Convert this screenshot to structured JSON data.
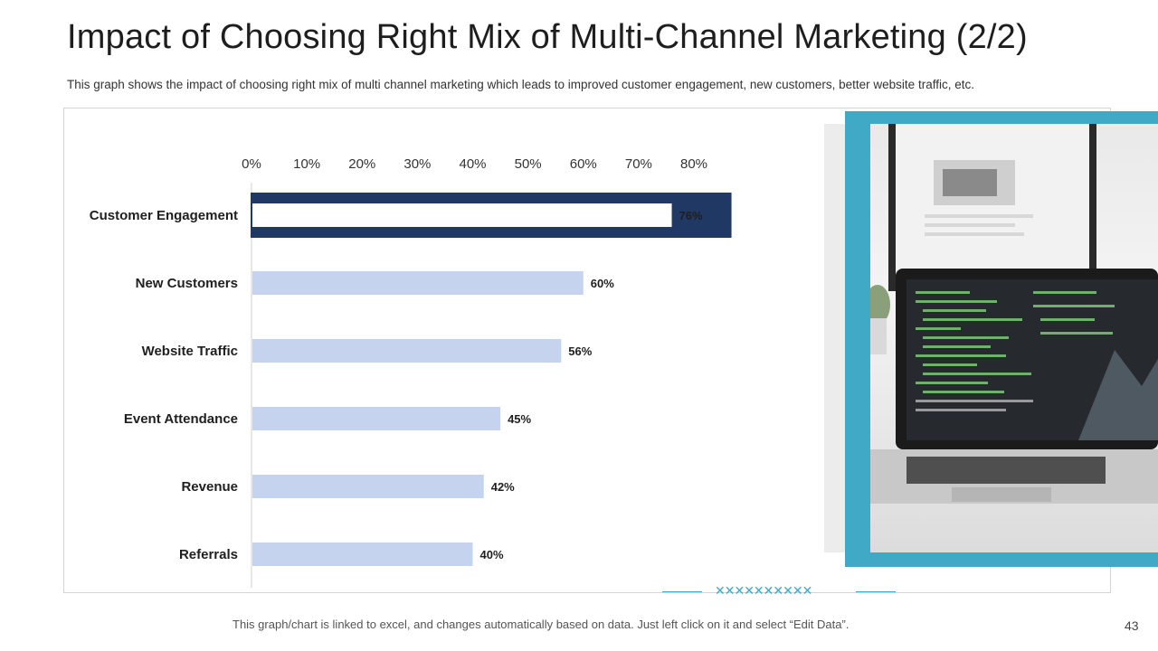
{
  "slide": {
    "title": "Impact of Choosing Right Mix of Multi-Channel Marketing (2/2)",
    "subtitle": "This graph shows the impact of choosing right mix of multi channel marketing which leads to improved customer engagement, new customers, better website traffic, etc.",
    "footer": "This graph/chart is linked to excel, and changes automatically based on data.  Just left click on it and select “Edit Data”.",
    "page_number": "43",
    "decoration_text": "✕✕✕✕✕✕✕✕✕✕",
    "accent_color": "#3fa9c6",
    "photo_icon": "laptop-monitor-photo"
  },
  "chart_data": {
    "type": "bar",
    "orientation": "horizontal",
    "categories": [
      "Customer Engagement",
      "New Customers",
      "Website Traffic",
      "Event Attendance",
      "Revenue",
      "Referrals"
    ],
    "values": [
      76,
      60,
      56,
      45,
      42,
      40
    ],
    "value_labels": [
      "76%",
      "60%",
      "56%",
      "45%",
      "42%",
      "40%"
    ],
    "x_ticks": [
      "0%",
      "10%",
      "20%",
      "30%",
      "40%",
      "50%",
      "60%",
      "70%",
      "80%"
    ],
    "xlim": [
      0,
      80
    ],
    "x_axis_position": "top",
    "highlighted_category": "Customer Engagement",
    "bar_color": "#c5d3ef",
    "highlight_color": "#1f3864",
    "grid": false,
    "title": "",
    "xlabel": "",
    "ylabel": ""
  }
}
